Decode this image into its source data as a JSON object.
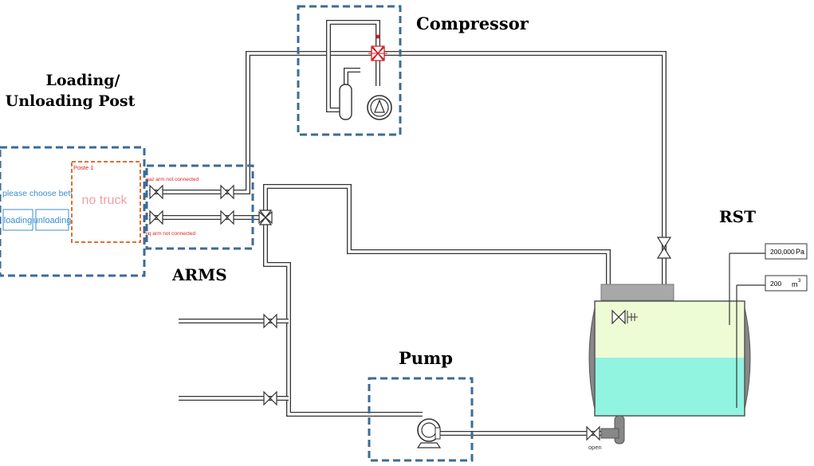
{
  "labels": {
    "loading_post_line1": "Loading/",
    "loading_post_line2": "Unloading Post",
    "compressor": "Compressor",
    "arms": "ARMS",
    "rst": "RST",
    "pump": "Pump"
  },
  "post": {
    "prompt": "please choose between:",
    "loading_button": "loading",
    "unloading_button": "unloading",
    "poste_title": "Poste 1",
    "truck_status": "no truck"
  },
  "arms": {
    "gas_arm_status": "gaz arm not connected",
    "liquid_arm_status": "liq arm not connected"
  },
  "tank": {
    "pressure_value": "200,000",
    "pressure_unit": "Pa",
    "volume_value": "200",
    "volume_unit": "m",
    "volume_unit_exp": "3"
  },
  "outlet_valve": {
    "state": "open"
  },
  "colors": {
    "dashed_box": "#3d6b96",
    "poste_box": "#e07030",
    "button_blue": "#3a8fd0",
    "no_truck_text": "#f0a0a0",
    "alert_red": "#e02020",
    "tank_gas": "#eefcd6",
    "tank_liquid": "#90f4e0",
    "tank_shell": "#888888"
  },
  "icons": {
    "valves": "valve-icon",
    "three_way_valve": "three-way-valve-icon",
    "compressor": "compressor-icon",
    "pump": "pump-icon",
    "level_gauge": "level-gauge-icon"
  }
}
